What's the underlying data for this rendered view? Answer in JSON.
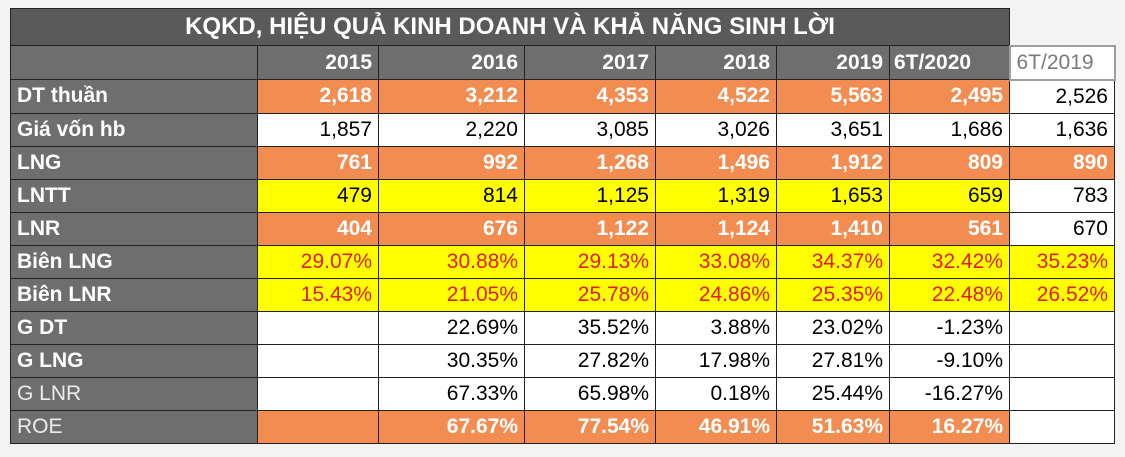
{
  "title": "KQKD, HIỆU QUẢ KINH DOANH VÀ KHẢ NĂNG SINH LỜI",
  "years": [
    "2015",
    "2016",
    "2017",
    "2018",
    "2019",
    "6T/2020",
    "6T/2019"
  ],
  "rows": [
    {
      "label": "DT thuần",
      "values": [
        "2,618",
        "3,212",
        "4,353",
        "4,522",
        "5,563",
        "2,495",
        "2,526"
      ]
    },
    {
      "label": "Giá vốn hb",
      "values": [
        "1,857",
        "2,220",
        "3,085",
        "3,026",
        "3,651",
        "1,686",
        "1,636"
      ]
    },
    {
      "label": "LNG",
      "values": [
        "761",
        "992",
        "1,268",
        "1,496",
        "1,912",
        "809",
        "890"
      ]
    },
    {
      "label": "LNTT",
      "values": [
        "479",
        "814",
        "1,125",
        "1,319",
        "1,653",
        "659",
        "783"
      ]
    },
    {
      "label": "LNR",
      "values": [
        "404",
        "676",
        "1,122",
        "1,124",
        "1,410",
        "561",
        "670"
      ]
    },
    {
      "label": "Biên LNG",
      "values": [
        "29.07%",
        "30.88%",
        "29.13%",
        "33.08%",
        "34.37%",
        "32.42%",
        "35.23%"
      ]
    },
    {
      "label": "Biên LNR",
      "values": [
        "15.43%",
        "21.05%",
        "25.78%",
        "24.86%",
        "25.35%",
        "22.48%",
        "26.52%"
      ]
    },
    {
      "label": "G DT",
      "values": [
        "",
        "22.69%",
        "35.52%",
        "3.88%",
        "23.02%",
        "-1.23%",
        ""
      ]
    },
    {
      "label": "G LNG",
      "values": [
        "",
        "30.35%",
        "27.82%",
        "17.98%",
        "27.81%",
        "-9.10%",
        ""
      ]
    },
    {
      "label": "G LNR",
      "values": [
        "",
        "67.33%",
        "65.98%",
        "0.18%",
        "25.44%",
        "-16.27%",
        ""
      ]
    },
    {
      "label": "ROE",
      "values": [
        "",
        "67.67%",
        "77.54%",
        "46.91%",
        "51.63%",
        "16.27%",
        ""
      ]
    }
  ],
  "colors": {
    "orange": "#f28c50",
    "yellow": "#ffff00",
    "header_gray": "#6e6e6e",
    "title_gray": "#5a5a5a",
    "red_text": "#e41b1b"
  }
}
